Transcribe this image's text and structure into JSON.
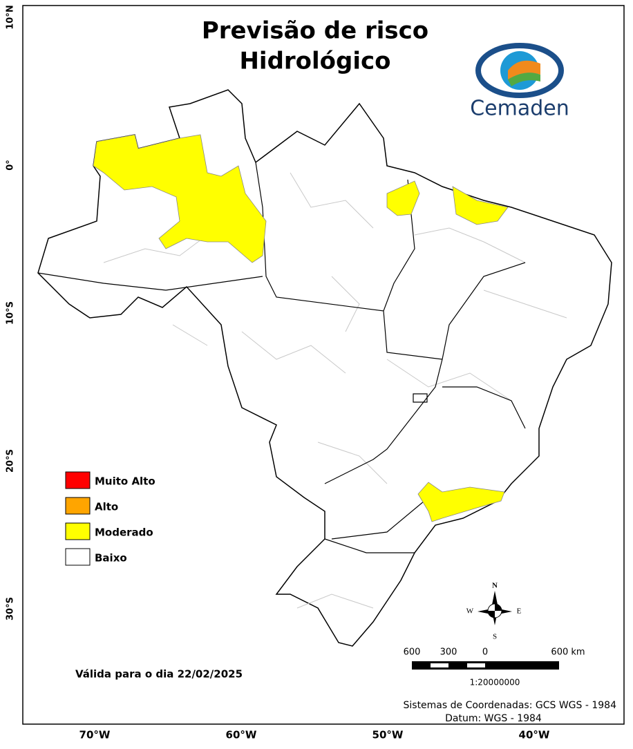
{
  "header": {
    "title_lines": [
      "Previsão de risco",
      "Hidrológico"
    ],
    "logo": "Cemaden"
  },
  "graticule": {
    "latitudes": [
      "10°N",
      "0°",
      "10°S",
      "20°S",
      "30°S"
    ],
    "longitudes": [
      "70°W",
      "60°W",
      "50°W",
      "40°W"
    ]
  },
  "legend": {
    "items": [
      {
        "label": "Muito Alto",
        "color": "#ff0000"
      },
      {
        "label": "Alto",
        "color": "#ffa500"
      },
      {
        "label": "Moderado",
        "color": "#ffff00"
      },
      {
        "label": "Baixo",
        "color": "#ffffff"
      }
    ]
  },
  "validity": "Válida para o dia 22/02/2025",
  "compass": {
    "n": "N",
    "s": "S",
    "e": "E",
    "w": "W"
  },
  "scale_bar": {
    "labels": [
      "600",
      "300",
      "0",
      "600 km"
    ],
    "ratio": "1:20000000"
  },
  "credits": [
    "Sistemas de Coordenadas: GCS WGS - 1984",
    "Datum: WGS - 1984"
  ]
}
